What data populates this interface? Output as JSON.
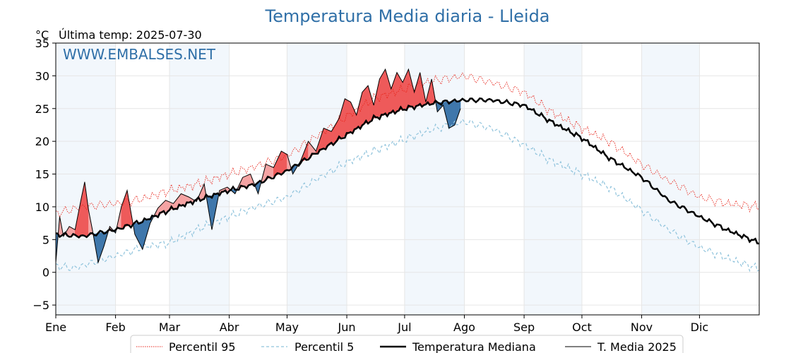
{
  "chart_data": {
    "type": "line",
    "title": "Temperatura Media diaria - Lleida",
    "ylabel": "°C",
    "subtitle": "Última temp: 2025-07-30",
    "watermark": "WWW.EMBALSES.NET",
    "ylim": [
      -6.5,
      35
    ],
    "xlim": [
      1,
      366
    ],
    "yticks": [
      -5,
      0,
      5,
      10,
      15,
      20,
      25,
      30,
      35
    ],
    "months": [
      "Ene",
      "Feb",
      "Mar",
      "Abr",
      "May",
      "Jun",
      "Jul",
      "Ago",
      "Sep",
      "Oct",
      "Nov",
      "Dic"
    ],
    "month_start_days": [
      1,
      32,
      60,
      91,
      121,
      152,
      182,
      213,
      244,
      274,
      305,
      335
    ],
    "grid": true,
    "legend_position": "bottom",
    "colors": {
      "title": "#2f6fa7",
      "p95": "#e8261c",
      "p5": "#8fc3dc",
      "median": "#000000",
      "current": "#000000",
      "above_fill": "#f5a3a3",
      "above_fill_strong": "#ee5a5a",
      "below_fill": "#3f77ab",
      "month_band": "#f2f7fc",
      "grid": "#e6e6e6"
    },
    "series": [
      {
        "name": "Percentil 95",
        "style": "dotted-red",
        "x": [
          1,
          15,
          32,
          46,
          60,
          74,
          91,
          105,
          121,
          135,
          152,
          166,
          182,
          196,
          213,
          227,
          244,
          258,
          274,
          288,
          305,
          319,
          335,
          349,
          366
        ],
        "y": [
          9.0,
          10.0,
          10.5,
          11.2,
          12.5,
          13.4,
          15.0,
          16.2,
          17.8,
          20.5,
          23.8,
          26.5,
          28.0,
          29.2,
          30.0,
          29.0,
          27.5,
          24.5,
          22.0,
          20.0,
          16.5,
          14.0,
          11.5,
          10.5,
          10.0
        ]
      },
      {
        "name": "Percentil 5",
        "style": "dashed-lightblue",
        "x": [
          1,
          10,
          20,
          32,
          46,
          60,
          74,
          91,
          105,
          121,
          135,
          152,
          166,
          182,
          196,
          213,
          227,
          244,
          258,
          274,
          288,
          305,
          319,
          335,
          349,
          366
        ],
        "y": [
          1.0,
          0.6,
          1.5,
          2.5,
          3.8,
          4.5,
          6.5,
          8.5,
          10.0,
          11.5,
          14.0,
          16.8,
          18.5,
          20.3,
          21.8,
          23.0,
          22.0,
          19.5,
          17.0,
          15.0,
          13.0,
          9.5,
          6.5,
          3.8,
          2.2,
          0.5
        ]
      },
      {
        "name": "Temperatura Mediana",
        "style": "thick-black",
        "x": [
          1,
          15,
          32,
          46,
          60,
          74,
          91,
          105,
          121,
          135,
          152,
          166,
          182,
          196,
          213,
          227,
          244,
          258,
          274,
          288,
          305,
          319,
          335,
          349,
          366
        ],
        "y": [
          5.8,
          5.5,
          6.5,
          7.8,
          9.5,
          11.0,
          12.5,
          13.5,
          15.5,
          18.0,
          21.0,
          23.5,
          25.0,
          25.8,
          26.3,
          26.3,
          25.5,
          23.0,
          20.5,
          17.5,
          14.5,
          11.0,
          8.5,
          6.5,
          4.5
        ]
      },
      {
        "name": "T. Media 2025",
        "style": "thin-black",
        "x": [
          1,
          3,
          5,
          8,
          11,
          14,
          16,
          18,
          20,
          23,
          26,
          29,
          32,
          35,
          38,
          42,
          46,
          50,
          54,
          58,
          62,
          66,
          70,
          74,
          78,
          82,
          86,
          90,
          94,
          98,
          102,
          106,
          110,
          114,
          118,
          121,
          124,
          128,
          132,
          136,
          140,
          144,
          148,
          151,
          154,
          157,
          160,
          163,
          166,
          169,
          172,
          175,
          178,
          181,
          184,
          187,
          190,
          193,
          196,
          199,
          202,
          205,
          208,
          211
        ],
        "y": [
          1.5,
          8.5,
          5.5,
          7.0,
          6.5,
          11.0,
          13.8,
          9.5,
          6.5,
          1.5,
          4.0,
          7.0,
          6.0,
          10.0,
          12.5,
          5.8,
          3.5,
          7.5,
          9.8,
          11.0,
          10.5,
          12.0,
          11.5,
          10.8,
          13.5,
          6.5,
          12.5,
          13.0,
          12.0,
          14.5,
          15.0,
          12.0,
          16.5,
          16.0,
          18.5,
          18.0,
          15.0,
          17.0,
          20.0,
          18.5,
          22.0,
          21.5,
          23.5,
          26.5,
          26.0,
          24.0,
          27.5,
          28.5,
          25.5,
          29.5,
          31.0,
          28.0,
          30.5,
          29.0,
          31.0,
          27.5,
          30.5,
          26.0,
          29.5,
          24.5,
          25.5,
          22.0,
          22.5,
          25.0
        ]
      }
    ],
    "legend": [
      "Percentil 95",
      "Percentil 5",
      "Temperatura Mediana",
      "T. Media 2025"
    ]
  }
}
